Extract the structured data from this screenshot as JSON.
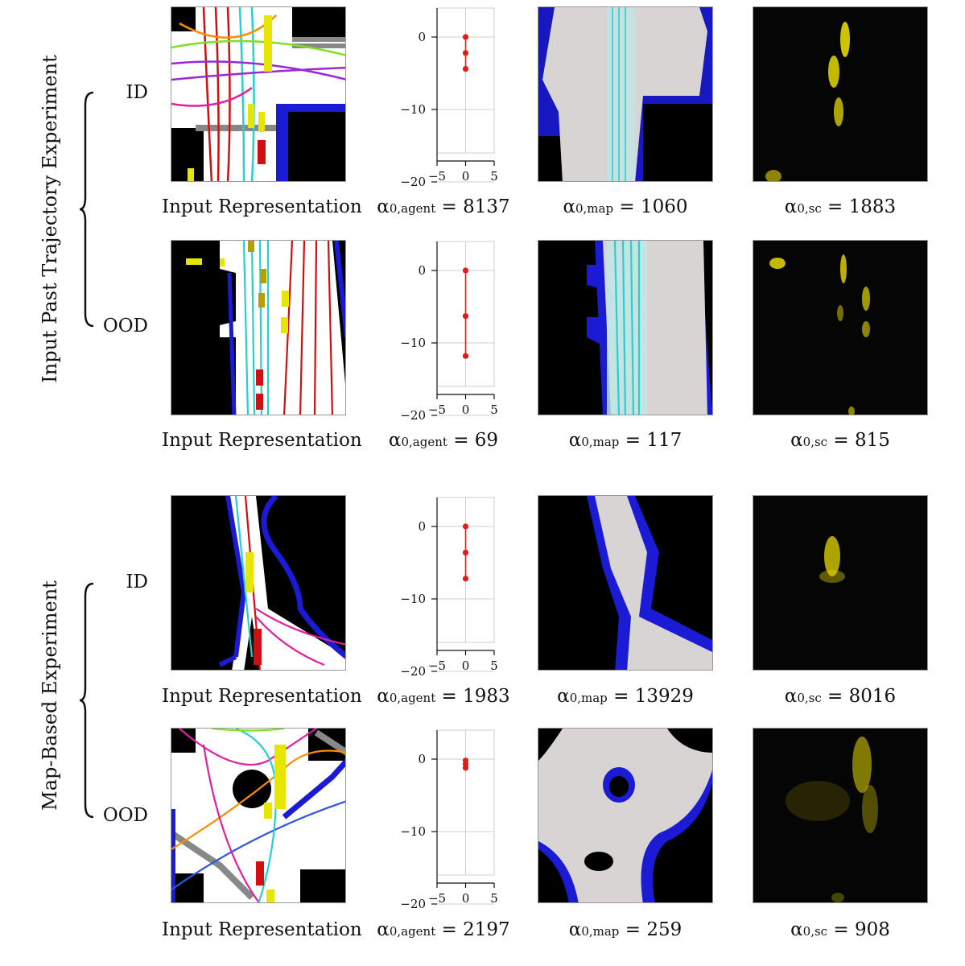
{
  "groups": [
    {
      "label": "Input Past Trajectory Experiment"
    },
    {
      "label": "Map-Based Experiment"
    }
  ],
  "rows": [
    {
      "tag": "ID",
      "input_caption": "Input Representation",
      "agent": {
        "sub": "0,agent",
        "value": "8137"
      },
      "map": {
        "sub": "0,map",
        "value": "1060"
      },
      "sc": {
        "sub": "0,sc",
        "value": "1883"
      },
      "chart_data": {
        "type": "scatter",
        "xlim": [
          -5,
          5
        ],
        "ylim": [
          -20,
          0
        ],
        "x_ticks": [
          "−5",
          "0",
          "5"
        ],
        "y_ticks": [
          "0",
          "−10",
          "−20"
        ],
        "points": [
          [
            0,
            0
          ],
          [
            0,
            -2.2
          ],
          [
            0,
            -4.4
          ]
        ],
        "color": "#e41a1c"
      }
    },
    {
      "tag": "OOD",
      "input_caption": "Input Representation",
      "agent": {
        "sub": "0,agent",
        "value": "69"
      },
      "map": {
        "sub": "0,map",
        "value": "117"
      },
      "sc": {
        "sub": "0,sc",
        "value": "815"
      },
      "chart_data": {
        "type": "scatter",
        "xlim": [
          -5,
          5
        ],
        "ylim": [
          -20,
          0
        ],
        "x_ticks": [
          "−5",
          "0",
          "5"
        ],
        "y_ticks": [
          "0",
          "−10",
          "−20"
        ],
        "points": [
          [
            0,
            0
          ],
          [
            0,
            -6.3
          ],
          [
            0,
            -11.8
          ]
        ],
        "color": "#e41a1c"
      }
    },
    {
      "tag": "ID",
      "input_caption": "Input Representation",
      "agent": {
        "sub": "0,agent",
        "value": "1983"
      },
      "map": {
        "sub": "0,map",
        "value": "13929"
      },
      "sc": {
        "sub": "0,sc",
        "value": "8016"
      },
      "chart_data": {
        "type": "scatter",
        "xlim": [
          -5,
          5
        ],
        "ylim": [
          -20,
          0
        ],
        "x_ticks": [
          "−5",
          "0",
          "5"
        ],
        "y_ticks": [
          "0",
          "−10",
          "−20"
        ],
        "points": [
          [
            0,
            0
          ],
          [
            0,
            -3.6
          ],
          [
            0,
            -7.2
          ]
        ],
        "color": "#e41a1c"
      }
    },
    {
      "tag": "OOD",
      "input_caption": "Input Representation",
      "agent": {
        "sub": "0,agent",
        "value": "2197"
      },
      "map": {
        "sub": "0,map",
        "value": "259"
      },
      "sc": {
        "sub": "0,sc",
        "value": "908"
      },
      "chart_data": {
        "type": "scatter",
        "xlim": [
          -5,
          5
        ],
        "ylim": [
          -20,
          0
        ],
        "x_ticks": [
          "−5",
          "0",
          "5"
        ],
        "y_ticks": [
          "0",
          "−10",
          "−20"
        ],
        "points": [
          [
            0,
            -0.2
          ],
          [
            0,
            -0.7
          ],
          [
            0,
            -1.2
          ]
        ],
        "color": "#e41a1c"
      }
    }
  ],
  "colors": {
    "road": "#ffffff",
    "lane_ego": "#26d0d0",
    "boundary": "#1b1bd6",
    "vehicle": "#e6e600",
    "ego": "#d01010",
    "heat": "#e6d800",
    "density": "#d8d8d8"
  }
}
